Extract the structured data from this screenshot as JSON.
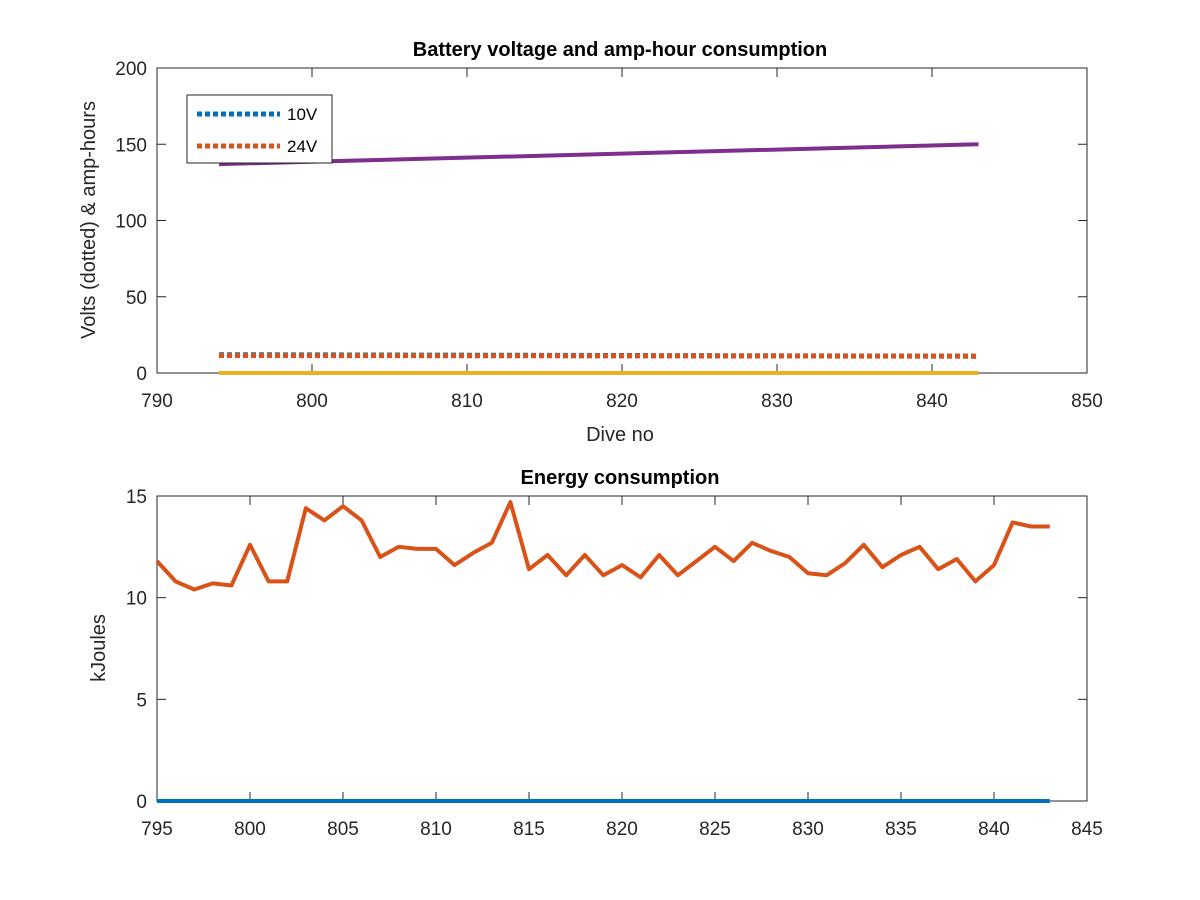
{
  "chart_data": [
    {
      "type": "line",
      "title": "Battery voltage and amp-hour consumption",
      "xlabel": "Dive no",
      "ylabel": "Volts (dotted) & amp-hours",
      "xlim": [
        790,
        850
      ],
      "ylim": [
        0,
        200
      ],
      "xticks": [
        790,
        800,
        810,
        820,
        830,
        840,
        850
      ],
      "yticks": [
        0,
        50,
        100,
        150,
        200
      ],
      "legend_position": "top-left",
      "grid": false,
      "series": [
        {
          "name": "10V",
          "color": "#0072BD",
          "style": "dotted",
          "x": [
            794,
            843
          ],
          "values": [
            12,
            11
          ]
        },
        {
          "name": "24V",
          "color": "#D95319",
          "style": "dotted",
          "x": [
            794,
            843
          ],
          "values": [
            11.5,
            11
          ]
        },
        {
          "color": "#7E2F8E",
          "style": "solid",
          "x": [
            794,
            843
          ],
          "values": [
            137,
            150
          ]
        },
        {
          "color": "#EDB120",
          "style": "solid",
          "x": [
            794,
            843
          ],
          "values": [
            0,
            0
          ]
        }
      ]
    },
    {
      "type": "line",
      "title": "Energy consumption",
      "xlabel": "",
      "ylabel": "kJoules",
      "xlim": [
        795,
        845
      ],
      "ylim": [
        0,
        15
      ],
      "xticks": [
        795,
        800,
        805,
        810,
        815,
        820,
        825,
        830,
        835,
        840,
        845
      ],
      "yticks": [
        0,
        5,
        10,
        15
      ],
      "grid": false,
      "series": [
        {
          "color": "#0072BD",
          "style": "solid",
          "x": [
            795,
            843
          ],
          "values": [
            0,
            0
          ]
        },
        {
          "color": "#D95319",
          "style": "solid",
          "x": [
            795,
            796,
            797,
            798,
            799,
            800,
            801,
            802,
            803,
            804,
            805,
            806,
            807,
            808,
            809,
            810,
            811,
            812,
            813,
            814,
            815,
            816,
            817,
            818,
            819,
            820,
            821,
            822,
            823,
            824,
            825,
            826,
            827,
            828,
            829,
            830,
            831,
            832,
            833,
            834,
            835,
            836,
            837,
            838,
            839,
            840,
            841,
            842,
            843
          ],
          "values": [
            11.8,
            10.8,
            10.4,
            10.7,
            10.6,
            12.6,
            10.8,
            10.8,
            14.4,
            13.8,
            14.5,
            13.8,
            12.0,
            12.5,
            12.4,
            12.4,
            11.6,
            12.2,
            12.7,
            14.7,
            11.4,
            12.1,
            11.1,
            12.1,
            11.1,
            11.6,
            11.0,
            12.1,
            11.1,
            11.8,
            12.5,
            11.8,
            12.7,
            12.3,
            12.0,
            11.2,
            11.1,
            11.7,
            12.6,
            11.5,
            12.1,
            12.5,
            11.4,
            11.9,
            10.8,
            11.6,
            13.7,
            13.5,
            13.5
          ]
        }
      ]
    }
  ]
}
